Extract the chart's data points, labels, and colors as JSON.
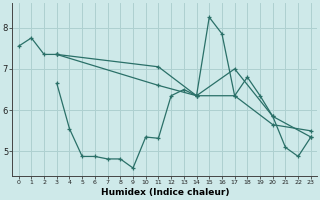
{
  "xlabel": "Humidex (Indice chaleur)",
  "background_color": "#cee9e9",
  "grid_color": "#aed0d0",
  "line_color": "#2a7068",
  "xlim": [
    -0.5,
    23.5
  ],
  "ylim": [
    4.4,
    8.6
  ],
  "xticks": [
    0,
    1,
    2,
    3,
    4,
    5,
    6,
    7,
    8,
    9,
    10,
    11,
    12,
    13,
    14,
    15,
    16,
    17,
    18,
    19,
    20,
    21,
    22,
    23
  ],
  "yticks": [
    5,
    6,
    7,
    8
  ],
  "series": [
    {
      "x": [
        0,
        1,
        2,
        3
      ],
      "y": [
        7.55,
        7.75,
        7.35,
        7.35
      ]
    },
    {
      "x": [
        3,
        11,
        14,
        17,
        20,
        23
      ],
      "y": [
        7.35,
        7.05,
        6.35,
        7.0,
        5.85,
        5.35
      ]
    },
    {
      "x": [
        3,
        11,
        14,
        17,
        20,
        23
      ],
      "y": [
        7.35,
        6.6,
        6.35,
        6.35,
        5.65,
        5.5
      ]
    },
    {
      "x": [
        3,
        4,
        5,
        6,
        7,
        8,
        9,
        10,
        11,
        12,
        13,
        14,
        15,
        16,
        17,
        18,
        19,
        20,
        21,
        22,
        23
      ],
      "y": [
        6.65,
        5.55,
        4.88,
        4.88,
        4.82,
        4.82,
        4.6,
        5.35,
        5.32,
        6.35,
        6.5,
        6.35,
        8.25,
        7.85,
        6.35,
        6.8,
        6.35,
        5.85,
        5.1,
        4.88,
        5.35
      ]
    }
  ]
}
